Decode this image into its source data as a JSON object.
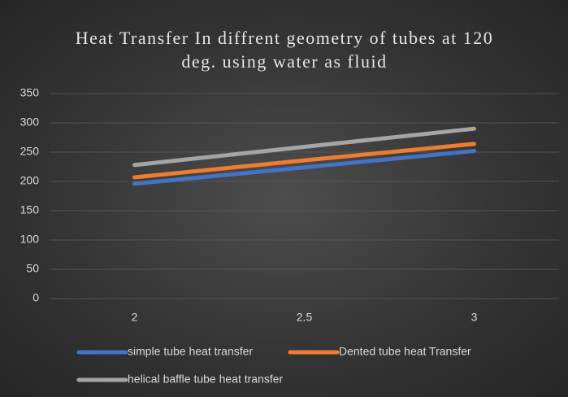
{
  "chart_data": {
    "type": "line",
    "title": "Heat Transfer In diffrent geometry of tubes at 120 deg. using water as fluid",
    "categories": [
      "2",
      "2.5",
      "3"
    ],
    "series": [
      {
        "name": "simple tube heat transfer",
        "color": "#4472c4",
        "values": [
          196,
          224,
          252
        ]
      },
      {
        "name": "Dented tube heat Transfer",
        "color": "#ed7d31",
        "values": [
          207,
          236,
          264
        ]
      },
      {
        "name": "helical baffle tube heat transfer",
        "color": "#a5a5a5",
        "values": [
          228,
          259,
          290
        ]
      }
    ],
    "ylim": [
      0,
      350
    ],
    "yticks": [
      0,
      50,
      100,
      150,
      200,
      250,
      300,
      350
    ],
    "grid": true,
    "legend": "bottom"
  }
}
